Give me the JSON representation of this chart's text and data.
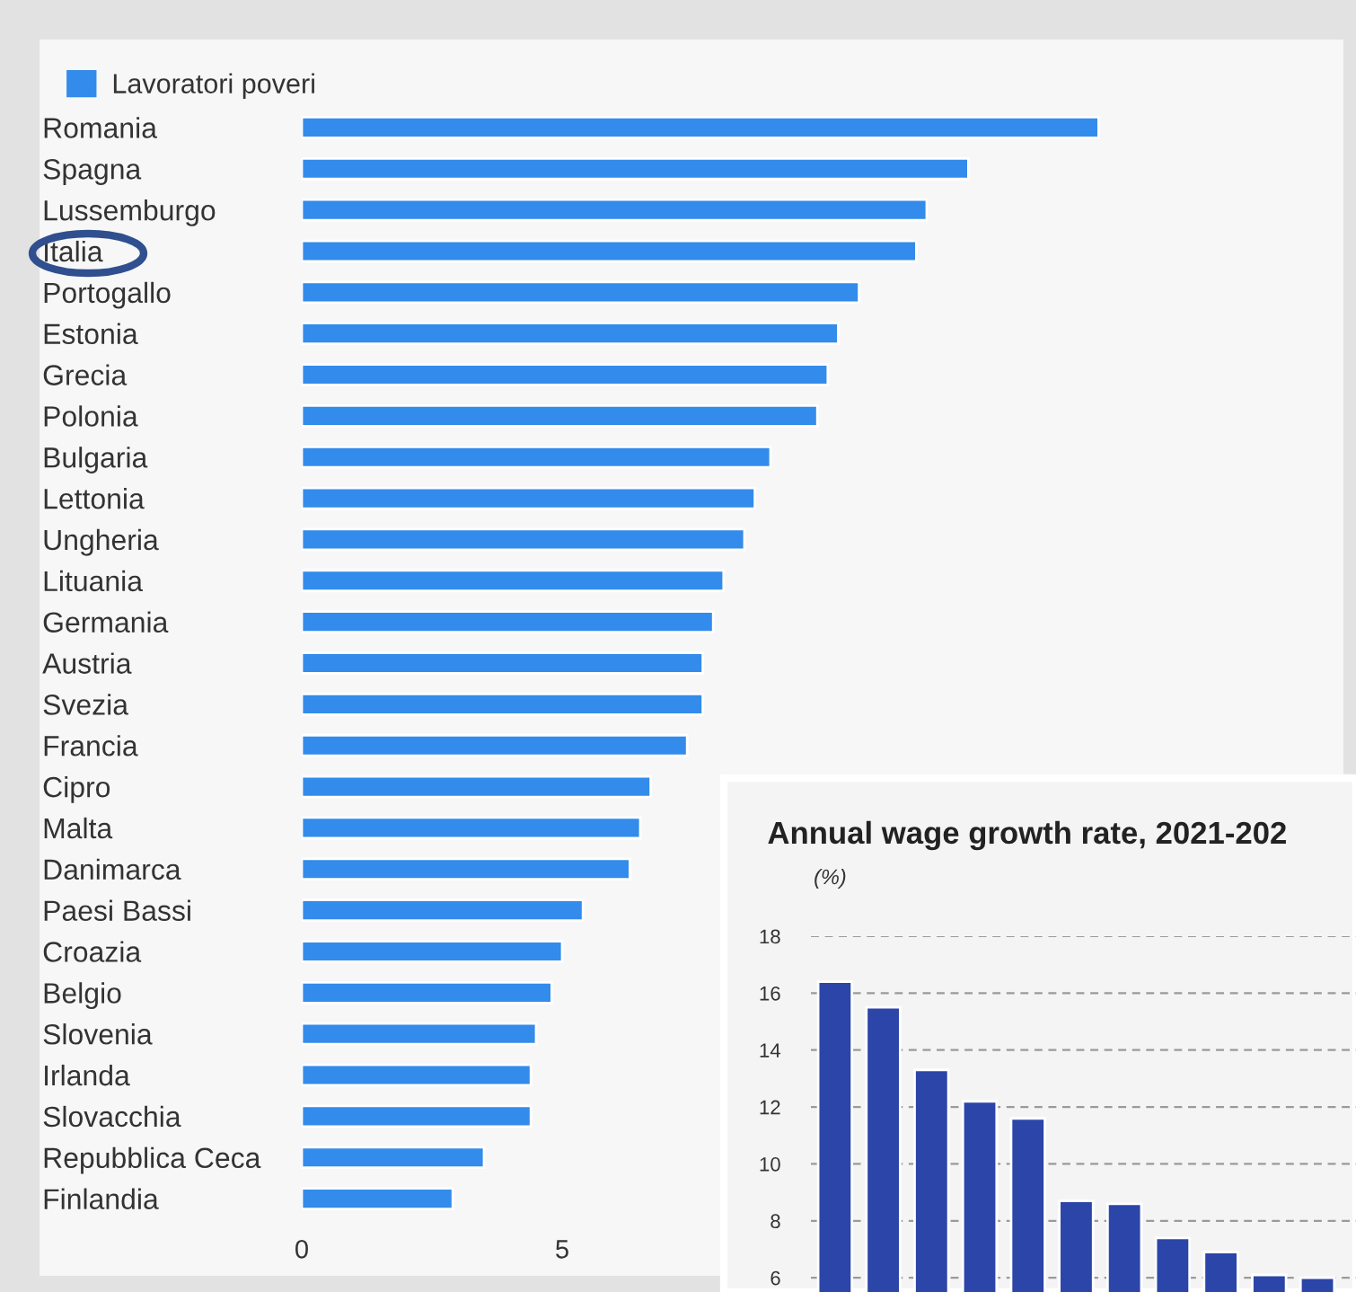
{
  "chart_data": [
    {
      "type": "bar",
      "orientation": "horizontal",
      "categories": [
        "Romania",
        "Spagna",
        "Lussemburgo",
        "Italia",
        "Portogallo",
        "Estonia",
        "Grecia",
        "Polonia",
        "Bulgaria",
        "Lettonia",
        "Ungheria",
        "Lituania",
        "Germania",
        "Austria",
        "Svezia",
        "Francia",
        "Cipro",
        "Malta",
        "Danimarca",
        "Paesi Bassi",
        "Croazia",
        "Belgio",
        "Slovenia",
        "Irlanda",
        "Slovacchia",
        "Repubblica Ceca",
        "Finlandia"
      ],
      "series": [
        {
          "name": "Lavoratori poveri",
          "color": "#338beb",
          "values": [
            15.3,
            12.8,
            12.0,
            11.8,
            10.7,
            10.3,
            10.1,
            9.9,
            9.0,
            8.7,
            8.5,
            8.1,
            7.9,
            7.7,
            7.7,
            7.4,
            6.7,
            6.5,
            6.3,
            5.4,
            5.0,
            4.8,
            4.5,
            4.4,
            4.4,
            3.5,
            2.9
          ]
        }
      ],
      "xlim": [
        0,
        20
      ],
      "xticks": [
        0,
        5
      ],
      "legend": "top left",
      "grid": false
    },
    {
      "type": "bar",
      "title": "Annual wage growth rate, 2021-202",
      "subtitle": "(%)",
      "categories": [
        null,
        null,
        null,
        null,
        null,
        null,
        null,
        null,
        null,
        null,
        null
      ],
      "values": [
        16.4,
        15.5,
        13.3,
        12.2,
        11.6,
        8.7,
        8.6,
        7.4,
        6.9,
        6.1,
        6.0
      ],
      "color": "#2b45a8",
      "ylim": [
        5.5,
        18
      ],
      "yticks": [
        6,
        8,
        10,
        12,
        14,
        16,
        18
      ],
      "grid": "y",
      "legend": false
    }
  ]
}
